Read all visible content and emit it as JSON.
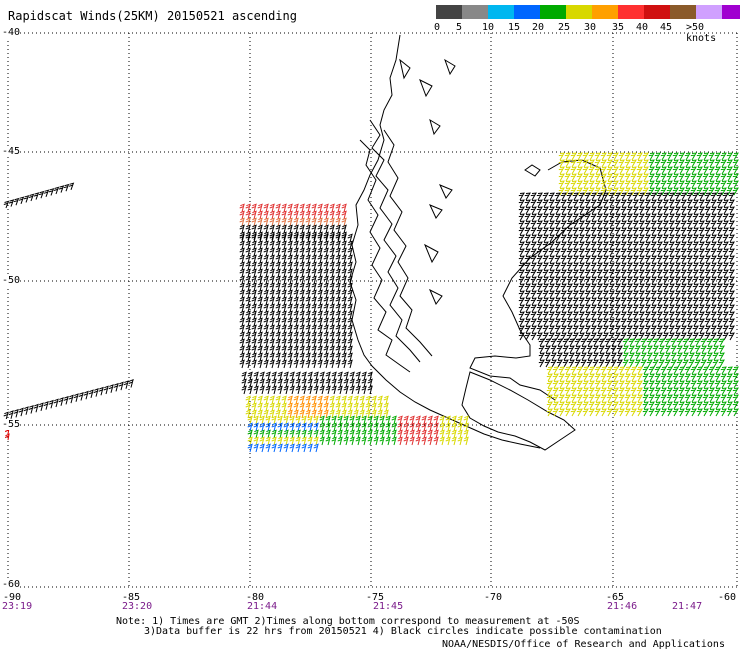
{
  "title": "Rapidscat Winds(25KM) 20150521 ascending",
  "colorbar": {
    "colors": [
      "#444444",
      "#888888",
      "#00b7f0",
      "#0066ff",
      "#00aa00",
      "#d8d800",
      "#ffa000",
      "#ff3030",
      "#d01010",
      "#8a5a2a",
      "#d0a0ff",
      "#a000d0",
      "#550088"
    ],
    "labels": [
      "0",
      "5",
      "10",
      "15",
      "20",
      "25",
      "30",
      "35",
      "40",
      "45",
      ">50 knots"
    ]
  },
  "lat_labels": [
    "-40",
    "-45",
    "-50",
    "-55",
    "-60"
  ],
  "lon_labels": [
    "-90",
    "-85",
    "-80",
    "-75",
    "-70",
    "-65",
    "-60"
  ],
  "time_labels": [
    "23:19",
    "23:20",
    "21:44",
    "21:45",
    "21:46",
    "21:47"
  ],
  "notes": {
    "line1": "Note: 1) Times are GMT 2)Times along bottom correspond to measurement at -50S",
    "line2": "3)Data buffer is 22 hrs from 20150521 4) Black circles indicate possible contamination"
  },
  "credit": "NOAA/NESDIS/Office of Research and Applications"
}
